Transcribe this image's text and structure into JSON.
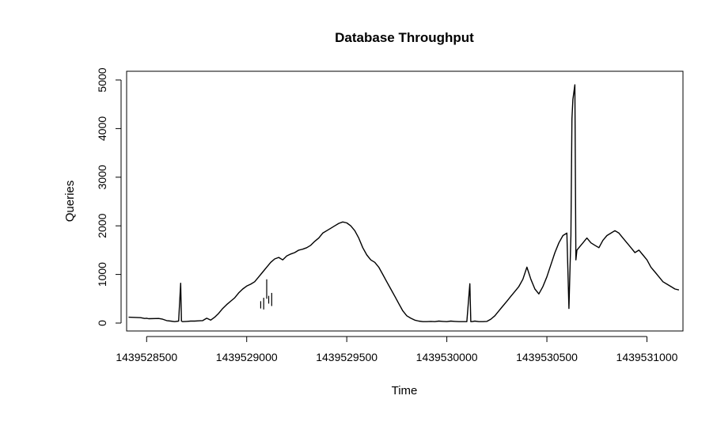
{
  "chart_data": {
    "type": "line",
    "title": "Database Throughput",
    "xlabel": "Time",
    "ylabel": "Queries",
    "xlim": [
      1439528400,
      1439531180
    ],
    "ylim": [
      0,
      5000
    ],
    "xticks": [
      1439528500,
      1439529000,
      1439529500,
      1439530000,
      1439530500,
      1439531000
    ],
    "xtick_labels": [
      "1439528500",
      "1439529000",
      "1439529500",
      "1439530000",
      "1439530500",
      "1439531000"
    ],
    "yticks": [
      0,
      1000,
      2000,
      3000,
      4000,
      5000
    ],
    "ytick_labels": [
      "0",
      "1000",
      "2000",
      "3000",
      "4000",
      "5000"
    ],
    "grid": false,
    "legend": "none",
    "color": "#000000",
    "series": [
      {
        "x": [
          1439528410,
          1439528470,
          1439528490,
          1439528500,
          1439528510,
          1439528560,
          1439528580,
          1439528600,
          1439528620,
          1439528640,
          1439528660,
          1439528670,
          1439528674,
          1439528680,
          1439528700,
          1439528720,
          1439528740,
          1439528760,
          1439528780,
          1439528800,
          1439528820,
          1439528840,
          1439528860,
          1439528880,
          1439528900,
          1439528920,
          1439528940,
          1439528960,
          1439528980,
          1439529000,
          1439529020,
          1439529040,
          1439529060,
          1439529080,
          1439529100,
          1439529120,
          1439529140,
          1439529160,
          1439529180,
          1439529200,
          1439529220,
          1439529240,
          1439529260,
          1439529280,
          1439529300,
          1439529320,
          1439529340,
          1439529360,
          1439529380,
          1439529400,
          1439529420,
          1439529440,
          1439529460,
          1439529480,
          1439529500,
          1439529520,
          1439529540,
          1439529560,
          1439529580,
          1439529600,
          1439529620,
          1439529640,
          1439529660,
          1439529680,
          1439529700,
          1439529720,
          1439529740,
          1439529760,
          1439529780,
          1439529800,
          1439529820,
          1439529840,
          1439529860,
          1439529880,
          1439529900,
          1439529920,
          1439529940,
          1439529960,
          1439529980,
          1439530000,
          1439530020,
          1439530040,
          1439530060,
          1439530080,
          1439530100,
          1439530115,
          1439530120,
          1439530125,
          1439530140,
          1439530160,
          1439530180,
          1439530200,
          1439530220,
          1439530240,
          1439530260,
          1439530280,
          1439530300,
          1439530320,
          1439530340,
          1439530360,
          1439530380,
          1439530400,
          1439530420,
          1439530440,
          1439530460,
          1439530480,
          1439530500,
          1439530520,
          1439530540,
          1439530560,
          1439530580,
          1439530600,
          1439530610,
          1439530620,
          1439530625,
          1439530630,
          1439530640,
          1439530645,
          1439530650,
          1439530660,
          1439530680,
          1439530700,
          1439530720,
          1439530740,
          1439530760,
          1439530780,
          1439530800,
          1439530820,
          1439530840,
          1439530860,
          1439530880,
          1439530900,
          1439530920,
          1439530940,
          1439530960,
          1439530980,
          1439531000,
          1439531020,
          1439531040,
          1439531060,
          1439531080,
          1439531100,
          1439531120,
          1439531140,
          1439531160
        ],
        "y": [
          120,
          110,
          95,
          100,
          90,
          95,
          80,
          50,
          40,
          30,
          40,
          820,
          40,
          30,
          35,
          40,
          40,
          45,
          50,
          100,
          60,
          120,
          200,
          300,
          380,
          450,
          520,
          620,
          700,
          760,
          800,
          850,
          950,
          1050,
          1150,
          1250,
          1320,
          1350,
          1300,
          1380,
          1420,
          1450,
          1500,
          1520,
          1550,
          1600,
          1680,
          1750,
          1850,
          1900,
          1950,
          2000,
          2050,
          2080,
          2060,
          2000,
          1900,
          1750,
          1550,
          1400,
          1300,
          1250,
          1150,
          1000,
          850,
          700,
          550,
          400,
          250,
          150,
          100,
          60,
          40,
          30,
          30,
          35,
          30,
          40,
          35,
          30,
          40,
          35,
          30,
          30,
          30,
          810,
          30,
          30,
          40,
          30,
          30,
          35,
          80,
          150,
          250,
          350,
          450,
          550,
          650,
          750,
          900,
          1150,
          900,
          700,
          600,
          750,
          950,
          1200,
          1450,
          1650,
          1800,
          1850,
          300,
          1800,
          4200,
          4600,
          4900,
          1300,
          1500,
          1550,
          1650,
          1750,
          1650,
          1600,
          1550,
          1700,
          1800,
          1850,
          1900,
          1850,
          1750,
          1650,
          1550,
          1450,
          1500,
          1400,
          1300,
          1150,
          1050,
          950,
          850,
          800,
          750,
          700,
          680
        ]
      },
      {
        "x": [
          1439529070,
          1439529085,
          1439529100,
          1439529110,
          1439529125
        ],
        "y": [
          450,
          520,
          500,
          560,
          620
        ],
        "drop_to": [
          300,
          280,
          900,
          400,
          350
        ]
      }
    ]
  }
}
